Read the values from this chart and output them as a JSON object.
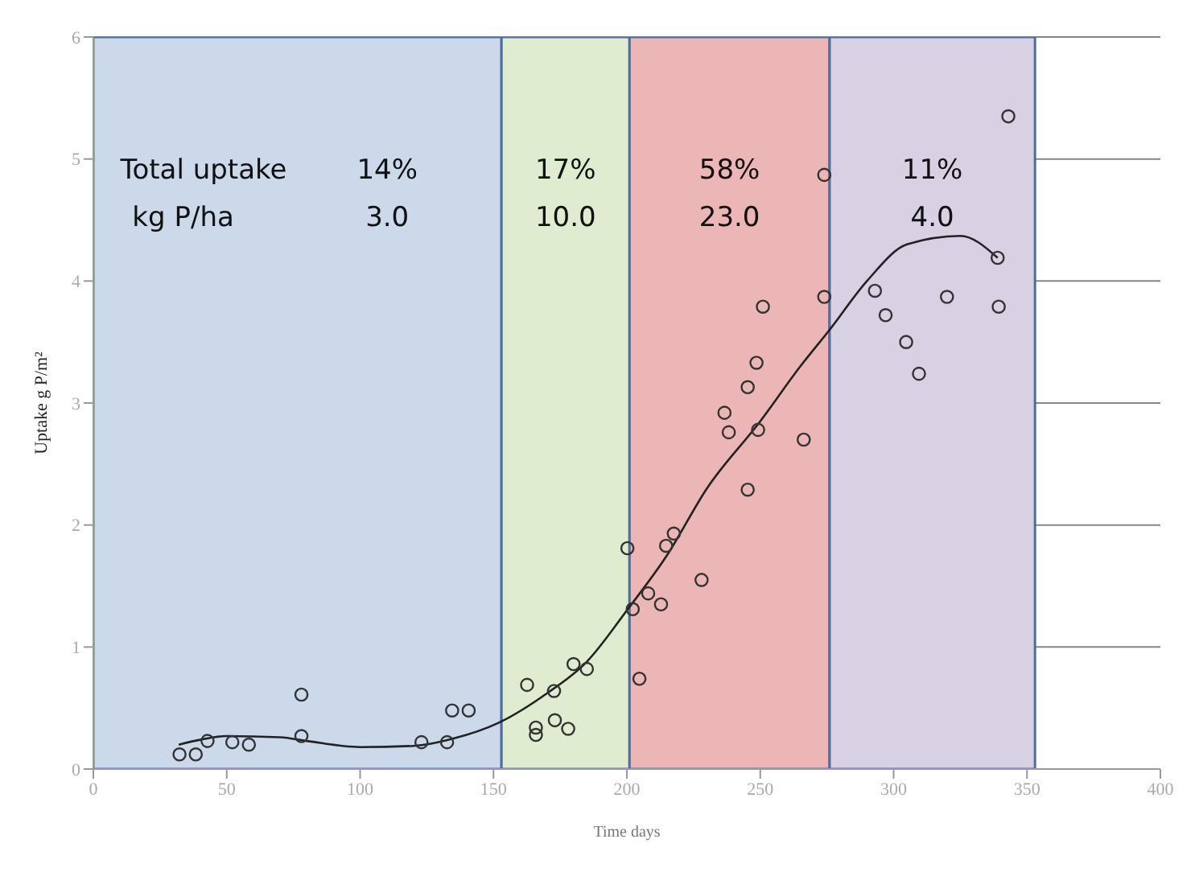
{
  "chart_data": {
    "type": "scatter",
    "xlabel": "Time days",
    "ylabel": "Uptake g P/m²",
    "xlim": [
      0,
      400
    ],
    "xticks": [
      0,
      50,
      100,
      150,
      200,
      250,
      300,
      350,
      400
    ],
    "ylim": [
      0,
      6
    ],
    "yticks": [
      0,
      1,
      2,
      3,
      4,
      5,
      6
    ],
    "grid": "y",
    "marker": "circle",
    "series": [
      {
        "color": "#333333",
        "x": [
          32.3,
          38.4,
          42.8,
          52.1,
          58.3,
          78,
          78,
          123,
          132.6,
          134.5,
          140.7,
          162.6,
          165.9,
          165.9,
          172.7,
          173,
          178,
          180,
          185,
          200.2,
          204.7,
          202.2,
          208,
          212.8,
          214.7,
          217.6,
          228,
          245.3,
          238.2,
          249.2,
          266.3,
          251,
          248.6,
          245.3,
          236.6,
          274,
          274,
          293,
          297,
          304.7,
          309.5,
          320,
          339,
          339.4,
          343
        ],
        "values": [
          0.12,
          0.12,
          0.23,
          0.22,
          0.2,
          0.61,
          0.27,
          0.22,
          0.22,
          0.48,
          0.48,
          0.69,
          0.34,
          0.28,
          0.64,
          0.4,
          0.33,
          0.86,
          0.82,
          1.81,
          0.74,
          1.31,
          1.44,
          1.35,
          1.83,
          1.93,
          1.55,
          2.29,
          2.76,
          2.78,
          2.7,
          3.79,
          3.33,
          3.13,
          2.92,
          4.87,
          3.87,
          3.92,
          3.72,
          3.5,
          3.24,
          3.87,
          4.19,
          3.79,
          5.35
        ]
      },
      {
        "type": "line",
        "color": "#222222",
        "line_style": "solid",
        "marker": "none",
        "x": [
          32,
          40,
          50,
          70,
          80,
          100,
          120,
          135,
          152,
          170,
          185,
          200,
          215,
          230,
          250,
          265,
          276,
          290,
          305,
          325,
          339
        ],
        "values": [
          0.2,
          0.24,
          0.27,
          0.26,
          0.23,
          0.18,
          0.19,
          0.25,
          0.38,
          0.62,
          0.88,
          1.3,
          1.75,
          2.3,
          2.85,
          3.3,
          3.6,
          4.0,
          4.3,
          4.37,
          4.19
        ]
      }
    ],
    "bands": [
      {
        "axis": "x",
        "from": 0,
        "to": 153,
        "color": "#ccd9ea"
      },
      {
        "axis": "x",
        "from": 153,
        "to": 201,
        "color": "#e0ecd0"
      },
      {
        "axis": "x",
        "from": 201,
        "to": 276,
        "color": "#ebb6b5"
      },
      {
        "axis": "x",
        "from": 276,
        "to": 353,
        "color": "#d8d0e3"
      }
    ],
    "annotations": [
      "Total uptake",
      "kg P/ha",
      "14%",
      "3.0",
      "17%",
      "10.0",
      "58%",
      "23.0",
      "11%",
      "4.0"
    ]
  }
}
